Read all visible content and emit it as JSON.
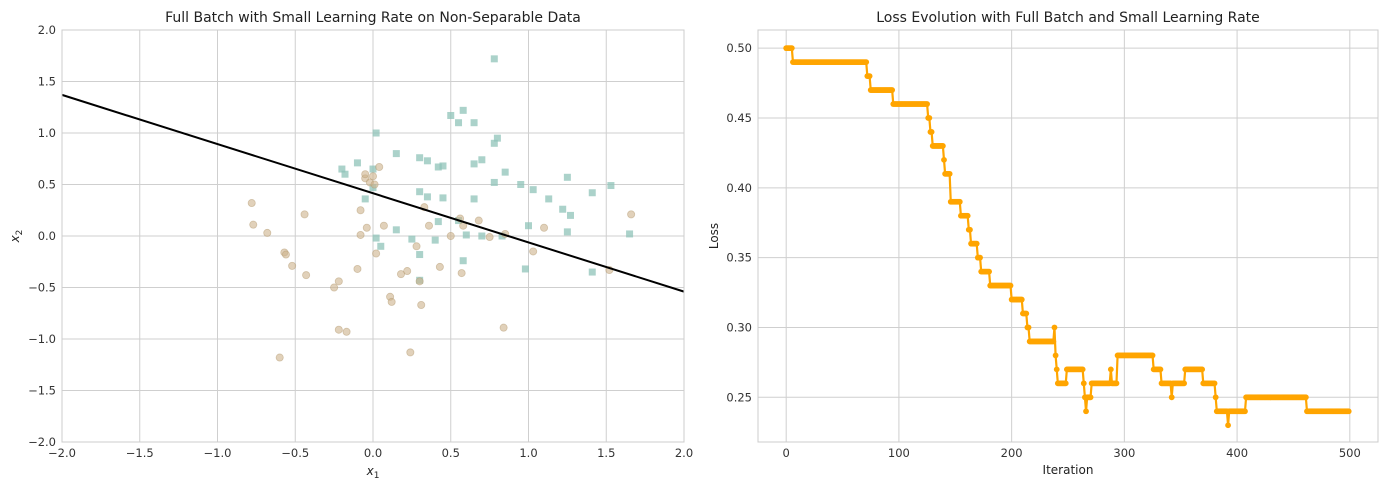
{
  "chart_data": [
    {
      "type": "scatter",
      "title": "Full Batch with Small Learning Rate on Non-Separable Data",
      "xlabel_main": "x",
      "xlabel_sub": "1",
      "ylabel_main": "x",
      "ylabel_sub": "2",
      "xlim": [
        -2,
        2
      ],
      "ylim": [
        -2,
        2
      ],
      "xticks": [
        -2.0,
        -1.5,
        -1.0,
        -0.5,
        0.0,
        0.5,
        1.0,
        1.5,
        2.0
      ],
      "yticks": [
        -2.0,
        -1.5,
        -1.0,
        -0.5,
        0.0,
        0.5,
        1.0,
        1.5,
        2.0
      ],
      "grid": true,
      "colors": {
        "class_a": "#8fc3b8",
        "class_b": "#cdb38c",
        "boundary": "#000000"
      },
      "series": [
        {
          "marker": "square",
          "points": [
            [
              0.78,
              1.72
            ],
            [
              0.58,
              1.22
            ],
            [
              0.5,
              1.17
            ],
            [
              0.55,
              1.1
            ],
            [
              0.65,
              1.1
            ],
            [
              0.8,
              0.95
            ],
            [
              0.78,
              0.9
            ],
            [
              0.02,
              1.0
            ],
            [
              -0.2,
              0.65
            ],
            [
              -0.18,
              0.6
            ],
            [
              -0.1,
              0.71
            ],
            [
              0.0,
              0.65
            ],
            [
              0.15,
              0.8
            ],
            [
              0.3,
              0.76
            ],
            [
              0.35,
              0.73
            ],
            [
              0.42,
              0.67
            ],
            [
              0.45,
              0.68
            ],
            [
              0.65,
              0.7
            ],
            [
              0.7,
              0.74
            ],
            [
              0.85,
              0.62
            ],
            [
              0.78,
              0.52
            ],
            [
              0.95,
              0.5
            ],
            [
              1.03,
              0.45
            ],
            [
              1.13,
              0.36
            ],
            [
              1.25,
              0.57
            ],
            [
              1.22,
              0.26
            ],
            [
              1.27,
              0.2
            ],
            [
              1.41,
              0.42
            ],
            [
              1.53,
              0.49
            ],
            [
              1.65,
              0.02
            ],
            [
              1.25,
              0.04
            ],
            [
              1.0,
              0.1
            ],
            [
              0.98,
              -0.32
            ],
            [
              1.41,
              -0.35
            ],
            [
              0.83,
              0.0
            ],
            [
              0.7,
              0.0
            ],
            [
              0.6,
              0.01
            ],
            [
              0.55,
              0.15
            ],
            [
              0.42,
              0.14
            ],
            [
              0.4,
              -0.04
            ],
            [
              0.3,
              -0.18
            ],
            [
              0.15,
              0.06
            ],
            [
              0.05,
              -0.1
            ],
            [
              0.02,
              -0.02
            ],
            [
              0.25,
              -0.03
            ],
            [
              0.3,
              -0.43
            ],
            [
              0.35,
              0.38
            ],
            [
              0.3,
              0.43
            ],
            [
              0.45,
              0.37
            ],
            [
              0.65,
              0.36
            ],
            [
              0.0,
              0.47
            ],
            [
              -0.05,
              0.36
            ],
            [
              0.58,
              -0.24
            ]
          ]
        },
        {
          "marker": "circle",
          "points": [
            [
              -0.78,
              0.32
            ],
            [
              -0.77,
              0.11
            ],
            [
              -0.68,
              0.03
            ],
            [
              -0.57,
              -0.16
            ],
            [
              -0.56,
              -0.18
            ],
            [
              -0.52,
              -0.29
            ],
            [
              -0.44,
              0.21
            ],
            [
              -0.43,
              -0.38
            ],
            [
              -0.25,
              -0.5
            ],
            [
              -0.22,
              -0.44
            ],
            [
              -0.22,
              -0.91
            ],
            [
              -0.17,
              -0.93
            ],
            [
              -0.1,
              -0.32
            ],
            [
              -0.08,
              0.25
            ],
            [
              -0.08,
              0.01
            ],
            [
              -0.05,
              0.56
            ],
            [
              -0.05,
              0.6
            ],
            [
              -0.04,
              0.08
            ],
            [
              -0.02,
              0.52
            ],
            [
              0.0,
              0.58
            ],
            [
              0.01,
              0.5
            ],
            [
              0.02,
              -0.17
            ],
            [
              0.04,
              0.67
            ],
            [
              0.07,
              0.1
            ],
            [
              0.11,
              -0.59
            ],
            [
              0.12,
              -0.64
            ],
            [
              0.18,
              -0.37
            ],
            [
              0.22,
              -0.34
            ],
            [
              0.24,
              -1.13
            ],
            [
              0.28,
              -0.1
            ],
            [
              0.3,
              -0.44
            ],
            [
              0.31,
              -0.67
            ],
            [
              0.33,
              0.28
            ],
            [
              0.36,
              0.1
            ],
            [
              0.43,
              -0.3
            ],
            [
              0.5,
              0.0
            ],
            [
              0.56,
              0.17
            ],
            [
              0.57,
              -0.36
            ],
            [
              0.58,
              0.1
            ],
            [
              0.68,
              0.15
            ],
            [
              0.75,
              -0.01
            ],
            [
              0.84,
              -0.89
            ],
            [
              0.85,
              0.02
            ],
            [
              1.03,
              -0.15
            ],
            [
              1.1,
              0.08
            ],
            [
              1.52,
              -0.33
            ],
            [
              1.66,
              0.21
            ],
            [
              -0.6,
              -1.18
            ]
          ]
        }
      ],
      "boundary_line": {
        "x": [
          -2,
          2
        ],
        "y": [
          1.37,
          -0.54
        ]
      }
    },
    {
      "type": "line",
      "title": "Loss Evolution with Full Batch and Small Learning Rate",
      "xlabel": "Iteration",
      "ylabel": "Loss",
      "xlim": [
        -25,
        525
      ],
      "ylim": [
        0.218,
        0.513
      ],
      "xticks": [
        0,
        100,
        200,
        300,
        400,
        500
      ],
      "yticks": [
        0.25,
        0.3,
        0.35,
        0.4,
        0.45,
        0.5
      ],
      "ytick_labels": [
        "0.25",
        "0.30",
        "0.35",
        "0.40",
        "0.45",
        "0.50"
      ],
      "grid": true,
      "colors": {
        "line": "#ffa500"
      },
      "steps": [
        [
          0,
          0.5
        ],
        [
          6,
          0.49
        ],
        [
          72,
          0.48
        ],
        [
          75,
          0.47
        ],
        [
          95,
          0.46
        ],
        [
          126,
          0.45
        ],
        [
          128,
          0.44
        ],
        [
          130,
          0.43
        ],
        [
          140,
          0.42
        ],
        [
          141,
          0.41
        ],
        [
          146,
          0.39
        ],
        [
          155,
          0.38
        ],
        [
          162,
          0.37
        ],
        [
          164,
          0.36
        ],
        [
          170,
          0.35
        ],
        [
          173,
          0.34
        ],
        [
          181,
          0.33
        ],
        [
          200,
          0.32
        ],
        [
          210,
          0.31
        ],
        [
          214,
          0.3
        ],
        [
          216,
          0.29
        ],
        [
          238,
          0.3
        ],
        [
          239,
          0.28
        ],
        [
          240,
          0.27
        ],
        [
          241,
          0.26
        ],
        [
          249,
          0.27
        ],
        [
          264,
          0.26
        ],
        [
          265,
          0.25
        ],
        [
          266,
          0.24
        ],
        [
          267,
          0.25
        ],
        [
          271,
          0.26
        ],
        [
          288,
          0.27
        ],
        [
          289,
          0.26
        ],
        [
          294,
          0.28
        ],
        [
          326,
          0.27
        ],
        [
          333,
          0.26
        ],
        [
          342,
          0.25
        ],
        [
          343,
          0.26
        ],
        [
          354,
          0.27
        ],
        [
          370,
          0.26
        ],
        [
          381,
          0.25
        ],
        [
          382,
          0.24
        ],
        [
          392,
          0.23
        ],
        [
          393,
          0.24
        ],
        [
          408,
          0.25
        ],
        [
          462,
          0.24
        ],
        [
          499,
          0.24
        ]
      ],
      "x_end": 499
    }
  ]
}
